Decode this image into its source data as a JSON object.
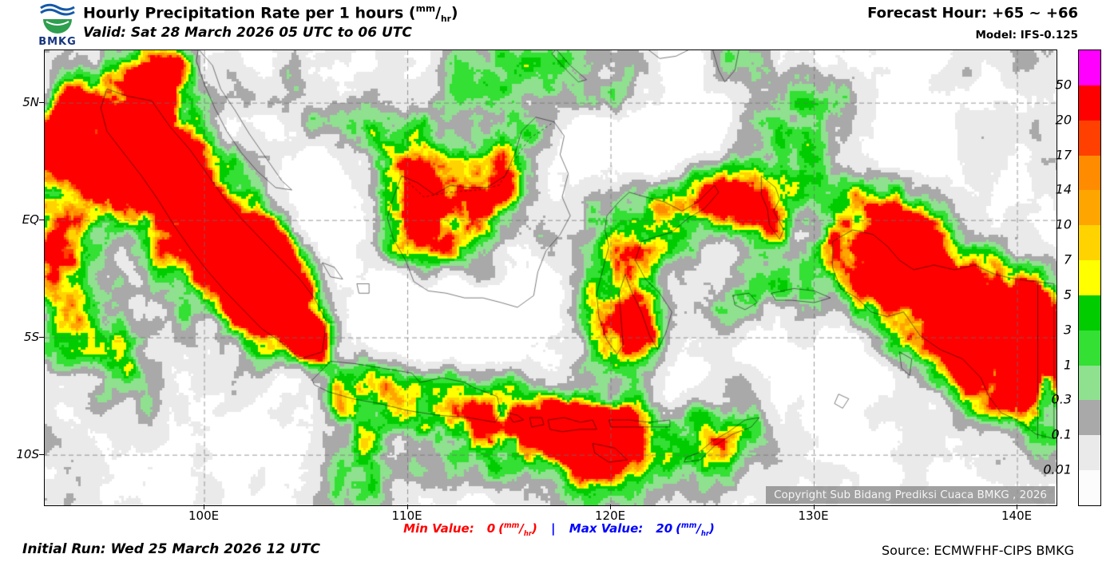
{
  "header": {
    "logo_text": "BMKG",
    "title_prefix": "Hourly Precipitation Rate per 1 hours ",
    "valid": "Valid: Sat 28 March 2026 05 UTC to 06 UTC",
    "forecast_hour": "Forecast Hour: +65 ~ +66",
    "model": "Model: IFS-0.125"
  },
  "units": {
    "open": "(",
    "num": "mm",
    "slash": "/",
    "den": "hr",
    "close": ")"
  },
  "map": {
    "x_ticks": [
      "100E",
      "110E",
      "120E",
      "130E",
      "140E"
    ],
    "y_ticks": [
      "5N",
      "EQ",
      "5S",
      "10S"
    ],
    "copyright": "Copyright Sub Bidang Prediksi Cuaca BMKG , 2026"
  },
  "legend": {
    "labels": [
      "50",
      "20",
      "17",
      "14",
      "10",
      "7",
      "5",
      "3",
      "1",
      "0.3",
      "0.1",
      "0.01"
    ],
    "colors": [
      "#FF00FF",
      "#FF0000",
      "#FF4000",
      "#FF8C00",
      "#FFA500",
      "#FFD300",
      "#FFFF00",
      "#00CC00",
      "#33E033",
      "#8FE08F",
      "#A9A9A9",
      "#EAEAEA",
      "#FCFCFC"
    ]
  },
  "footer": {
    "initial_run": "Initial Run: Wed 25 March 2026 12 UTC",
    "min_label": "Min Value:",
    "min_value": "0",
    "separator": "|",
    "max_label": "Max Value:",
    "max_value": "20",
    "source": "Source: ECMWFHF-CIPS BMKG"
  },
  "colors": {
    "min_value": "#FF0000",
    "max_value": "#0000FF",
    "grid": "#6E6E6E",
    "coast": "#000000"
  }
}
